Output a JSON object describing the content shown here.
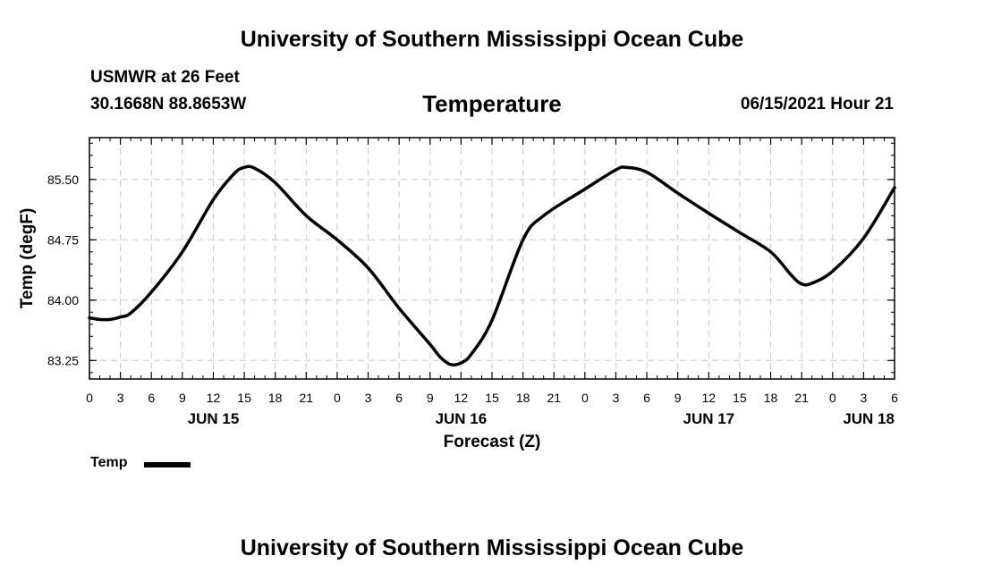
{
  "header": {
    "title": "University of Southern Mississippi Ocean Cube",
    "station": "USMWR at 26 Feet",
    "coords": "30.1668N  88.8653W",
    "chart_title": "Temperature",
    "datetime": "06/15/2021 Hour 21"
  },
  "footer": {
    "title": "University of Southern Mississippi Ocean Cube"
  },
  "legend": {
    "label": "Temp"
  },
  "chart_data": {
    "type": "line",
    "title": "Temperature",
    "xlabel": "Forecast (Z)",
    "ylabel": "Temp (degF)",
    "xlim": [
      0,
      78
    ],
    "ylim": [
      83.02,
      86.02
    ],
    "yticks": [
      83.25,
      84.0,
      84.75,
      85.5
    ],
    "ytick_labels": [
      "83.25",
      "84.00",
      "84.75",
      "85.50"
    ],
    "xtick_hours": [
      0,
      3,
      6,
      9,
      12,
      15,
      18,
      21,
      24,
      27,
      30,
      33,
      36,
      39,
      42,
      45,
      48,
      51,
      54,
      57,
      60,
      63,
      66,
      69,
      72,
      75,
      78
    ],
    "xtick_labels": [
      "0",
      "3",
      "6",
      "9",
      "12",
      "15",
      "18",
      "21",
      "0",
      "3",
      "6",
      "9",
      "12",
      "15",
      "18",
      "21",
      "0",
      "3",
      "6",
      "9",
      "12",
      "15",
      "18",
      "21",
      "0",
      "3",
      "6"
    ],
    "day_labels": [
      {
        "hour": 12,
        "label": "JUN 15"
      },
      {
        "hour": 36,
        "label": "JUN 16"
      },
      {
        "hour": 60,
        "label": "JUN 17"
      },
      {
        "hour": 75.5,
        "label": "JUN 18"
      }
    ],
    "grid": true,
    "series": [
      {
        "name": "Temp",
        "color": "#000000",
        "x": [
          0,
          1,
          2,
          3,
          4,
          6,
          9,
          12,
          14,
          15,
          16,
          18,
          21,
          24,
          27,
          30,
          33,
          34,
          35,
          36,
          37,
          39,
          42,
          44,
          48,
          51,
          52,
          54,
          57,
          60,
          63,
          66,
          68,
          69,
          70,
          72,
          75,
          78
        ],
        "y": [
          83.78,
          83.76,
          83.76,
          83.79,
          83.84,
          84.1,
          84.6,
          85.25,
          85.57,
          85.65,
          85.64,
          85.46,
          85.05,
          84.75,
          84.4,
          83.9,
          83.45,
          83.29,
          83.2,
          83.22,
          83.33,
          83.75,
          84.75,
          85.05,
          85.38,
          85.62,
          85.65,
          85.59,
          85.33,
          85.08,
          84.84,
          84.6,
          84.31,
          84.2,
          84.21,
          84.36,
          84.77,
          85.4
        ]
      }
    ]
  }
}
